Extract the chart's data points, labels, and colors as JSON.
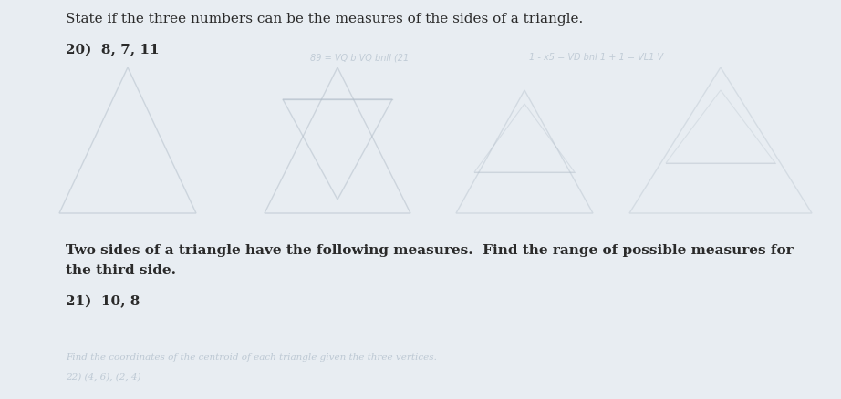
{
  "background_color": "#e8edf2",
  "title1": "State if the three numbers can be the measures of the sides of a triangle.",
  "problem20_label": "20)",
  "problem20_text": "8, 7, 11",
  "title2_line1": "Two sides of a triangle have the following measures.  Find the range of possible measures for",
  "title2_line2": "the third side.",
  "problem21_label": "21)",
  "problem21_text": "10, 8",
  "text_color": "#2a2a2a",
  "faint_text_color": "#9aabbb",
  "faint_tri_color": "#b0bcc8",
  "title_fontsize": 11.0,
  "label_fontsize": 11.0,
  "bottom_text": "Find the coordinates of the centroid of each triangle given the three vertices.",
  "bottom_text2": "22) (4, 6), (2, 4)",
  "faint_bleed1": "89 = VQ b VQ bnll (21",
  "faint_bleed2": "1 - x5 = VD bnl 1 + 1 = VL1 V"
}
